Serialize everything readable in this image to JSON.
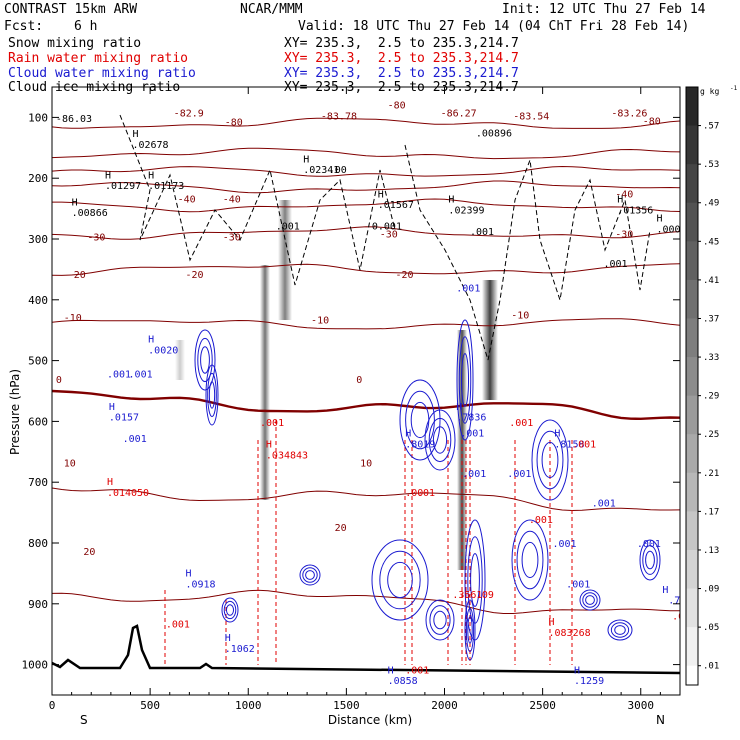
{
  "header": {
    "model": "CONTRAST 15km ARW",
    "org": "NCAR/MMM",
    "init": "Init: 12 UTC Thu 27 Feb 14",
    "fcst_label": "Fcst:",
    "fcst_value": "6 h",
    "valid": "Valid: 18 UTC Thu 27 Feb 14 (04 ChT Fri 28 Feb 14)"
  },
  "fields": [
    {
      "name": "Snow mixing ratio",
      "xy": "XY= 235.3,  2.5 to 235.3,214.7",
      "color": "#000000"
    },
    {
      "name": "Rain water mixing ratio",
      "xy": "XY= 235.3,  2.5 to 235.3,214.7",
      "color": "#e00000"
    },
    {
      "name": "Cloud water mixing ratio",
      "xy": "XY= 235.3,  2.5 to 235.3,214.7",
      "color": "#1a1ad0"
    },
    {
      "name": "Cloud ice mixing ratio",
      "xy": "XY= 235.3,  2.5 to 235.3,214.7",
      "color": "#000000"
    }
  ],
  "chart_data": {
    "type": "cross-section",
    "xlabel": "Distance (km)",
    "ylabel": "Pressure (hPa)",
    "x_ticks": [
      0,
      500,
      1000,
      1500,
      2000,
      2500,
      3000
    ],
    "y_ticks": [
      100,
      200,
      300,
      400,
      500,
      600,
      700,
      800,
      900,
      1000
    ],
    "xlim": [
      0,
      3200
    ],
    "ylim": [
      1050,
      50
    ],
    "x_end_labels": {
      "left": "S",
      "right": "N"
    },
    "colorbar": {
      "unit": "g kg",
      "unit_exp": "-1",
      "ticks": [
        ".57",
        ".53",
        ".49",
        ".45",
        ".41",
        ".37",
        ".33",
        ".29",
        ".25",
        ".21",
        ".17",
        ".13",
        ".09",
        ".05",
        ".01"
      ]
    },
    "temperature_contours": [
      {
        "label": "-80",
        "p": 110
      },
      {
        "label": "-70",
        "p": 160
      },
      {
        "label": "-60",
        "p": 190
      },
      {
        "label": "-50",
        "p": 215
      },
      {
        "label": "-40",
        "p": 245
      },
      {
        "label": "-30",
        "p": 290
      },
      {
        "label": "-20",
        "p": 350
      },
      {
        "label": "-10",
        "p": 440
      },
      {
        "label": "0",
        "p": 560
      },
      {
        "label": "10",
        "p": 710
      },
      {
        "label": "20",
        "p": 880
      }
    ],
    "temperature_labels": [
      {
        "t": "-82.9",
        "x": 620,
        "p": 105
      },
      {
        "t": "-80",
        "x": 880,
        "p": 122
      },
      {
        "t": "-83.78",
        "x": 1370,
        "p": 110
      },
      {
        "t": "-80",
        "x": 1710,
        "p": 90
      },
      {
        "t": "-86.27",
        "x": 1980,
        "p": 105
      },
      {
        "t": "-83.54",
        "x": 2350,
        "p": 110
      },
      {
        "t": "-83.26",
        "x": 2850,
        "p": 105
      },
      {
        "t": "-80",
        "x": 3010,
        "p": 120
      },
      {
        "t": "-40",
        "x": 640,
        "p": 265
      },
      {
        "t": "-40",
        "x": 870,
        "p": 265
      },
      {
        "t": "-40",
        "x": 2870,
        "p": 255
      },
      {
        "t": "-30",
        "x": 180,
        "p": 335
      },
      {
        "t": "-30",
        "x": 870,
        "p": 335
      },
      {
        "t": "-30",
        "x": 1670,
        "p": 330
      },
      {
        "t": "-30",
        "x": 2870,
        "p": 330
      },
      {
        "t": "-20",
        "x": 80,
        "p": 405
      },
      {
        "t": "-20",
        "x": 680,
        "p": 405
      },
      {
        "t": "-20",
        "x": 1750,
        "p": 405
      },
      {
        "t": "-10",
        "x": 60,
        "p": 485
      },
      {
        "t": "-10",
        "x": 1320,
        "p": 490
      },
      {
        "t": "-10",
        "x": 2340,
        "p": 480
      },
      {
        "t": "0",
        "x": 20,
        "p": 600
      },
      {
        "t": "0",
        "x": 1550,
        "p": 600
      },
      {
        "t": "10",
        "x": 60,
        "p": 755
      },
      {
        "t": "10",
        "x": 1570,
        "p": 755
      },
      {
        "t": "20",
        "x": 160,
        "p": 920
      },
      {
        "t": "20",
        "x": 1440,
        "p": 875
      }
    ],
    "snow_labels": [
      {
        "t": "-86.03",
        "x": 20,
        "p": 115
      },
      {
        "t": "H",
        "x": 410,
        "p": 143
      },
      {
        "t": ".02678",
        "x": 410,
        "p": 163
      },
      {
        "t": "H",
        "x": 270,
        "p": 220
      },
      {
        "t": ".01297",
        "x": 270,
        "p": 240
      },
      {
        "t": "H",
        "x": 490,
        "p": 220
      },
      {
        "t": ".01173",
        "x": 490,
        "p": 240
      },
      {
        "t": "H",
        "x": 100,
        "p": 270
      },
      {
        "t": ".00866",
        "x": 100,
        "p": 290
      },
      {
        "t": "H",
        "x": 1280,
        "p": 190
      },
      {
        "t": ".02341",
        "x": 1280,
        "p": 210
      },
      {
        "t": ".00",
        "x": 1410,
        "p": 210
      },
      {
        "t": "H",
        "x": 1660,
        "p": 255
      },
      {
        "t": ".01567",
        "x": 1660,
        "p": 275
      },
      {
        "t": "H",
        "x": 2020,
        "p": 265
      },
      {
        "t": ".02399",
        "x": 2020,
        "p": 285
      },
      {
        "t": ".00896",
        "x": 2160,
        "p": 142
      },
      {
        "t": "H",
        "x": 2880,
        "p": 265
      },
      {
        "t": ".01356",
        "x": 2880,
        "p": 285
      },
      {
        "t": "H",
        "x": 3080,
        "p": 300
      },
      {
        "t": ".0000",
        "x": 3080,
        "p": 320
      },
      {
        "t": ".001",
        "x": 1140,
        "p": 315
      },
      {
        "t": "0.001",
        "x": 1630,
        "p": 315
      },
      {
        "t": ".001",
        "x": 2130,
        "p": 325
      },
      {
        "t": ".001",
        "x": 2810,
        "p": 385
      }
    ],
    "cloud_water_labels": [
      {
        "t": ".001",
        "x": 2060,
        "p": 430
      },
      {
        "t": "H",
        "x": 490,
        "p": 525
      },
      {
        "t": ".0020",
        "x": 490,
        "p": 545
      },
      {
        "t": ".001",
        "x": 280,
        "p": 590
      },
      {
        "t": ".001",
        "x": 390,
        "p": 590
      },
      {
        "t": "H",
        "x": 290,
        "p": 650
      },
      {
        "t": ".0157",
        "x": 290,
        "p": 670
      },
      {
        "t": ".001",
        "x": 360,
        "p": 710
      },
      {
        "t": "H",
        "x": 2060,
        "p": 650
      },
      {
        "t": ".7836",
        "x": 2060,
        "p": 670
      },
      {
        "t": ".001",
        "x": 2080,
        "p": 700
      },
      {
        "t": "H",
        "x": 1800,
        "p": 700
      },
      {
        "t": ".8019",
        "x": 1800,
        "p": 720
      },
      {
        "t": "H",
        "x": 2560,
        "p": 700
      },
      {
        "t": ".8158",
        "x": 2560,
        "p": 720
      },
      {
        "t": ".001",
        "x": 2090,
        "p": 775
      },
      {
        "t": ".001",
        "x": 2320,
        "p": 775
      },
      {
        "t": ".001",
        "x": 2750,
        "p": 830
      },
      {
        "t": ".001",
        "x": 2550,
        "p": 905
      },
      {
        "t": ".001",
        "x": 2980,
        "p": 905
      },
      {
        "t": ".001",
        "x": 2620,
        "p": 980
      },
      {
        "t": "H",
        "x": 680,
        "p": 960
      },
      {
        "t": ".0918",
        "x": 680,
        "p": 980
      },
      {
        "t": "H",
        "x": 880,
        "p": 1080
      },
      {
        "t": ".1062",
        "x": 880,
        "p": 1100
      },
      {
        "t": "H",
        "x": 1710,
        "p": 1140
      },
      {
        "t": ".0858",
        "x": 1710,
        "p": 1160
      },
      {
        "t": "H",
        "x": 2660,
        "p": 1140
      },
      {
        "t": ".1259",
        "x": 2660,
        "p": 1160
      },
      {
        "t": "H",
        "x": 3110,
        "p": 990
      },
      {
        "t": ".738",
        "x": 3140,
        "p": 1010
      }
    ],
    "rain_labels": [
      {
        "t": ".001",
        "x": 1060,
        "p": 680
      },
      {
        "t": "H",
        "x": 1090,
        "p": 720
      },
      {
        "t": ".034843",
        "x": 1090,
        "p": 740
      },
      {
        "t": "H",
        "x": 280,
        "p": 790
      },
      {
        "t": ".014050",
        "x": 280,
        "p": 810
      },
      {
        "t": ".00",
        "x": 1800,
        "p": 810
      },
      {
        "t": ".01",
        "x": 1860,
        "p": 810
      },
      {
        "t": ".001",
        "x": 2330,
        "p": 680
      },
      {
        "t": ".001",
        "x": 2650,
        "p": 720
      },
      {
        "t": ".001",
        "x": 2430,
        "p": 860
      },
      {
        "t": ".3561",
        "x": 2040,
        "p": 1000
      },
      {
        "t": ".09",
        "x": 2160,
        "p": 1000
      },
      {
        "t": ".001",
        "x": 580,
        "p": 1055
      },
      {
        "t": "H",
        "x": 2530,
        "p": 1050
      },
      {
        "t": ".083268",
        "x": 2530,
        "p": 1070
      },
      {
        "t": ".001",
        "x": 1800,
        "p": 1140
      },
      {
        "t": ".0192",
        "x": 3160,
        "p": 1040
      }
    ]
  }
}
